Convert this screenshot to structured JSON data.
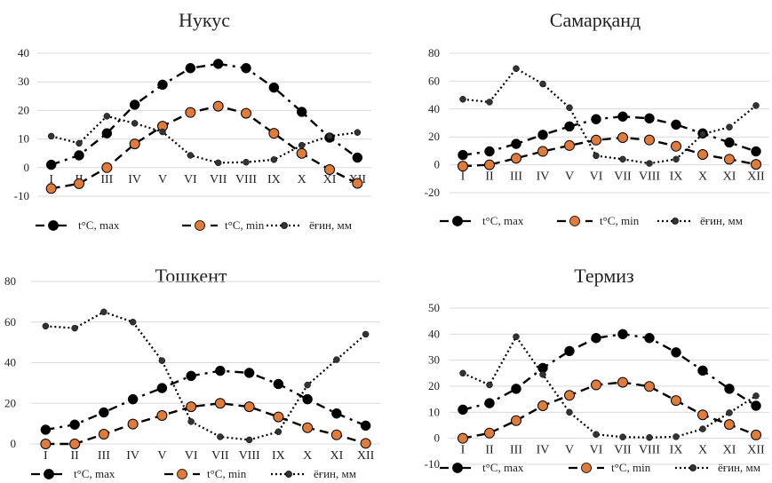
{
  "chart_data": [
    {
      "type": "line",
      "title": "Нукус",
      "categories": [
        "I",
        "II",
        "III",
        "IV",
        "V",
        "VI",
        "VII",
        "VIII",
        "IX",
        "X",
        "XI",
        "XII"
      ],
      "ylim": [
        -10,
        40
      ],
      "yticks": [
        -10,
        0,
        10,
        20,
        30,
        40
      ],
      "grid": true,
      "legend_position": "bottom",
      "series": [
        {
          "name": "t°C, max",
          "values": [
            1,
            4.3,
            12,
            22,
            29,
            34.8,
            36.3,
            34.8,
            28,
            19.5,
            10.5,
            3.5
          ]
        },
        {
          "name": "t°C, min",
          "values": [
            -7.3,
            -5.6,
            0,
            8.3,
            14.5,
            19.3,
            21.5,
            19,
            12,
            5,
            -0.7,
            -5.5
          ]
        },
        {
          "name": "ёғин, мм",
          "values": [
            11,
            8.5,
            18,
            15.5,
            12.5,
            4.3,
            1.7,
            1.9,
            2.8,
            7.8,
            11,
            12.3
          ]
        }
      ]
    },
    {
      "type": "line",
      "title": "Самарқанд",
      "categories": [
        "I",
        "II",
        "III",
        "IV",
        "V",
        "VI",
        "VII",
        "VIII",
        "IX",
        "X",
        "XI",
        "XII"
      ],
      "ylim": [
        -20,
        80
      ],
      "yticks": [
        -20,
        0,
        20,
        40,
        60,
        80
      ],
      "grid": true,
      "legend_position": "bottom",
      "series": [
        {
          "name": "t°C, max",
          "values": [
            7,
            9.6,
            15,
            21.5,
            27.5,
            32.7,
            34.6,
            33.3,
            28.8,
            22.5,
            16,
            9.6
          ]
        },
        {
          "name": "t°C, min",
          "values": [
            -1,
            0,
            4.7,
            9.6,
            13.8,
            17.7,
            19.5,
            17.8,
            13.3,
            7.4,
            4,
            0.3
          ]
        },
        {
          "name": "ёғин, мм",
          "values": [
            47,
            45,
            69,
            58,
            41,
            6.5,
            4,
            1,
            4,
            22,
            27,
            42.5
          ]
        }
      ]
    },
    {
      "type": "line",
      "title": "Тошкент",
      "categories": [
        "I",
        "II",
        "III",
        "IV",
        "V",
        "VI",
        "VII",
        "VIII",
        "IX",
        "X",
        "XI",
        "XII"
      ],
      "ylim": [
        0,
        80
      ],
      "yticks": [
        0,
        20,
        40,
        60,
        80
      ],
      "grid": true,
      "legend_position": "bottom",
      "series": [
        {
          "name": "t°C, max",
          "values": [
            7,
            9.5,
            15.5,
            22,
            27.5,
            33.5,
            36,
            35,
            29.5,
            22,
            15,
            9
          ]
        },
        {
          "name": "t°C, min",
          "values": [
            0,
            0,
            4.8,
            9.8,
            14,
            18.3,
            20,
            18.3,
            13.3,
            8,
            4.5,
            0.3
          ]
        },
        {
          "name": "ёғин, мм",
          "values": [
            58,
            57,
            65,
            60,
            41,
            11,
            3.5,
            2,
            6,
            29,
            41.5,
            54
          ]
        }
      ]
    },
    {
      "type": "line",
      "title": "Термиз",
      "categories": [
        "I",
        "II",
        "III",
        "IV",
        "V",
        "VI",
        "VII",
        "VIII",
        "IX",
        "X",
        "XI",
        "XII"
      ],
      "ylim": [
        -10,
        50
      ],
      "yticks": [
        -10,
        0,
        10,
        20,
        30,
        40,
        50
      ],
      "grid": true,
      "legend_position": "bottom",
      "series": [
        {
          "name": "t°C, max",
          "values": [
            11,
            13.5,
            19,
            27,
            33.5,
            38.5,
            40,
            38.5,
            33,
            26,
            19,
            12.5
          ]
        },
        {
          "name": "t°C, min",
          "values": [
            0,
            2,
            6.8,
            12.5,
            16.5,
            20.5,
            21.5,
            19.9,
            14.5,
            9,
            5.3,
            1.3
          ]
        },
        {
          "name": "ёғин, мм",
          "values": [
            25,
            20.5,
            39,
            24.5,
            10,
            1.5,
            0.5,
            0.3,
            0.6,
            3.6,
            9.8,
            16.3
          ]
        }
      ]
    }
  ],
  "colors": {
    "max_marker": "#000000",
    "min_marker": "#e07b39",
    "precip_marker": "#333333",
    "line": "#000000",
    "grid": "#d9d9d9"
  }
}
